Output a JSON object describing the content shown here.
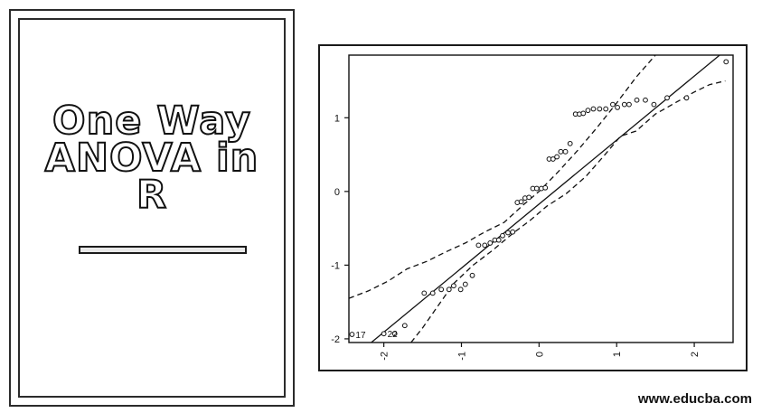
{
  "cover": {
    "title_line1": "One Way",
    "title_line2": "ANOVA in",
    "title_line3": "R"
  },
  "watermark": "www.educba.com",
  "chart_data": {
    "type": "scatter",
    "title": "",
    "xlabel": "",
    "ylabel": "",
    "xlim": [
      -2.45,
      2.5
    ],
    "ylim": [
      -2.05,
      1.85
    ],
    "x_ticks": [
      -2,
      -1,
      0,
      1,
      2
    ],
    "y_ticks": [
      -2,
      -1,
      0,
      1
    ],
    "x_tick_labels": [
      "-2",
      "-1",
      "0",
      "1",
      "2"
    ],
    "y_tick_labels": [
      "-2",
      "-1",
      "0",
      "1"
    ],
    "grid": false,
    "points": {
      "x": [
        -2.41,
        -2.0,
        -1.86,
        -1.73,
        -1.48,
        -1.37,
        -1.26,
        -1.16,
        -1.1,
        -1.01,
        -0.95,
        -0.86,
        -0.78,
        -0.7,
        -0.63,
        -0.57,
        -0.52,
        -0.47,
        -0.4,
        -0.34,
        -0.28,
        -0.23,
        -0.18,
        -0.13,
        -0.08,
        -0.03,
        0.03,
        0.08,
        0.13,
        0.18,
        0.23,
        0.28,
        0.34,
        0.4,
        0.47,
        0.52,
        0.57,
        0.63,
        0.7,
        0.78,
        0.86,
        0.95,
        1.01,
        1.1,
        1.16,
        1.26,
        1.37,
        1.48,
        1.65,
        1.9,
        2.41
      ],
      "y": [
        -1.94,
        -1.93,
        -1.93,
        -1.82,
        -1.38,
        -1.38,
        -1.33,
        -1.33,
        -1.28,
        -1.33,
        -1.26,
        -1.14,
        -0.73,
        -0.73,
        -0.7,
        -0.66,
        -0.66,
        -0.6,
        -0.56,
        -0.55,
        -0.15,
        -0.14,
        -0.09,
        -0.08,
        0.04,
        0.04,
        0.04,
        0.05,
        0.44,
        0.44,
        0.47,
        0.54,
        0.54,
        0.65,
        1.05,
        1.05,
        1.06,
        1.1,
        1.12,
        1.12,
        1.12,
        1.18,
        1.14,
        1.18,
        1.18,
        1.24,
        1.24,
        1.18,
        1.27,
        1.27,
        1.76
      ]
    },
    "point_labels": [
      {
        "index": 0,
        "text": "17"
      },
      {
        "index": 1,
        "text": "22"
      }
    ],
    "reference_line": {
      "x": [
        -2.45,
        2.5
      ],
      "y": [
        -2.3,
        2.0
      ]
    },
    "envelope_upper": {
      "x": [
        -2.45,
        -2.2,
        -1.95,
        -1.7,
        -1.45,
        -1.2,
        -0.95,
        -0.7,
        -0.45,
        -0.2,
        0.0,
        0.25,
        0.5,
        0.75,
        1.0,
        1.25,
        1.5
      ],
      "y": [
        -1.45,
        -1.35,
        -1.22,
        -1.05,
        -0.95,
        -0.82,
        -0.7,
        -0.55,
        -0.42,
        -0.18,
        0.0,
        0.27,
        0.56,
        0.87,
        1.2,
        1.55,
        1.85
      ]
    },
    "envelope_lower": {
      "x": [
        -1.65,
        -1.5,
        -1.3,
        -1.1,
        -0.85,
        -0.6,
        -0.35,
        -0.1,
        0.1,
        0.35,
        0.6,
        0.85,
        1.05,
        1.25,
        1.5,
        1.75,
        2.0,
        2.2,
        2.4
      ],
      "y": [
        -2.05,
        -1.85,
        -1.55,
        -1.25,
        -1.0,
        -0.8,
        -0.58,
        -0.38,
        -0.2,
        -0.03,
        0.2,
        0.5,
        0.75,
        0.82,
        1.05,
        1.2,
        1.35,
        1.45,
        1.5
      ]
    }
  }
}
